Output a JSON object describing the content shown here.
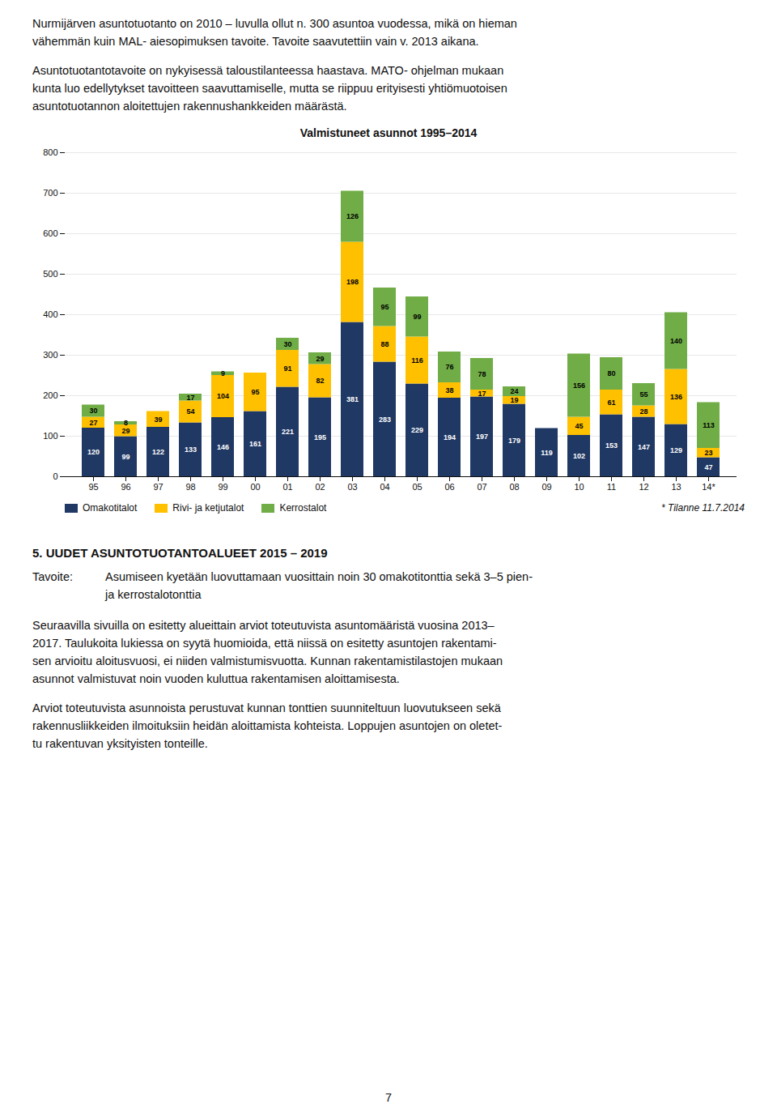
{
  "chart_data": {
    "type": "bar",
    "stacked": true,
    "title": "Valmistuneet asunnot 1995–2014",
    "categories": [
      "95",
      "96",
      "97",
      "98",
      "99",
      "00",
      "01",
      "02",
      "03",
      "04",
      "05",
      "06",
      "07",
      "08",
      "09",
      "10",
      "11",
      "12",
      "13",
      "14*"
    ],
    "series": [
      {
        "name": "Omakotitalot",
        "color": "#1F3864",
        "values": [
          120,
          99,
          122,
          133,
          146,
          161,
          221,
          195,
          381,
          283,
          229,
          194,
          197,
          179,
          119,
          102,
          153,
          147,
          129,
          47
        ]
      },
      {
        "name": "Rivi- ja ketjutalot",
        "color": "#FFC000",
        "values": [
          27,
          29,
          39,
          54,
          104,
          95,
          91,
          82,
          198,
          88,
          116,
          38,
          17,
          19,
          0,
          45,
          61,
          28,
          136,
          23
        ]
      },
      {
        "name": "Kerrostalot",
        "color": "#70AD47",
        "values": [
          30,
          8,
          0,
          17,
          9,
          0,
          30,
          29,
          126,
          95,
          99,
          76,
          78,
          24,
          0,
          156,
          80,
          55,
          140,
          113
        ]
      }
    ],
    "ylim": [
      0,
      800
    ],
    "yticks": [
      0,
      100,
      200,
      300,
      400,
      500,
      600,
      700,
      800
    ],
    "grid": true,
    "legend": "bottom",
    "data_labels": true,
    "annotations": [
      "* Tilanne 11.7.2014"
    ]
  },
  "page_text": {
    "paragraphs_before": [
      [
        "Nurmijärven asuntotuotanto on 2010 – luvulla ollut n. 300 asuntoa vuodessa, mikä on hieman",
        "vähemmän kuin MAL- aiesopimuksen tavoite. Tavoite saavutettiin vain v. 2013 aikana."
      ],
      [
        "Asuntotuotantotavoite on nykyisessä taloustilanteessa haastava. MATO- ohjelman mukaan",
        "kunta luo edellytykset tavoitteen saavuttamiselle, mutta se riippuu erityisesti yhtiömuotoisen",
        "asuntotuotannon aloitettujen rakennushankkeiden määrästä."
      ]
    ],
    "heading": "5. UUDET ASUNTOTUOTANTOALUEET 2015 – 2019",
    "goal_label": "Tavoite:",
    "goal_lines": [
      "Asumiseen kyetään luovuttamaan vuosittain noin 30 omakotitonttia sekä 3–5 pien-",
      "ja kerrostalotonttia"
    ],
    "paragraphs_after": [
      [
        "Seuraavilla sivuilla on esitetty alueittain arviot toteutuvista asuntomääristä vuosina 2013–",
        "2017. Taulukoita lukiessa on syytä huomioida, että niissä on esitetty asuntojen rakentami-",
        "sen arvioitu aloitusvuosi, ei niiden valmistumisvuotta. Kunnan rakentamistilastojen mukaan",
        "asunnot valmistuvat noin vuoden kuluttua rakentamisen aloittamisesta."
      ],
      [
        "Arviot toteutuvista asunnoista perustuvat kunnan tonttien suunniteltuun luovutukseen sekä",
        "rakennusliikkeiden ilmoituksiin heidän aloittamista kohteista. Loppujen asuntojen on oletet-",
        "tu rakentuvan yksityisten tonteille."
      ]
    ],
    "page_number": "7"
  }
}
